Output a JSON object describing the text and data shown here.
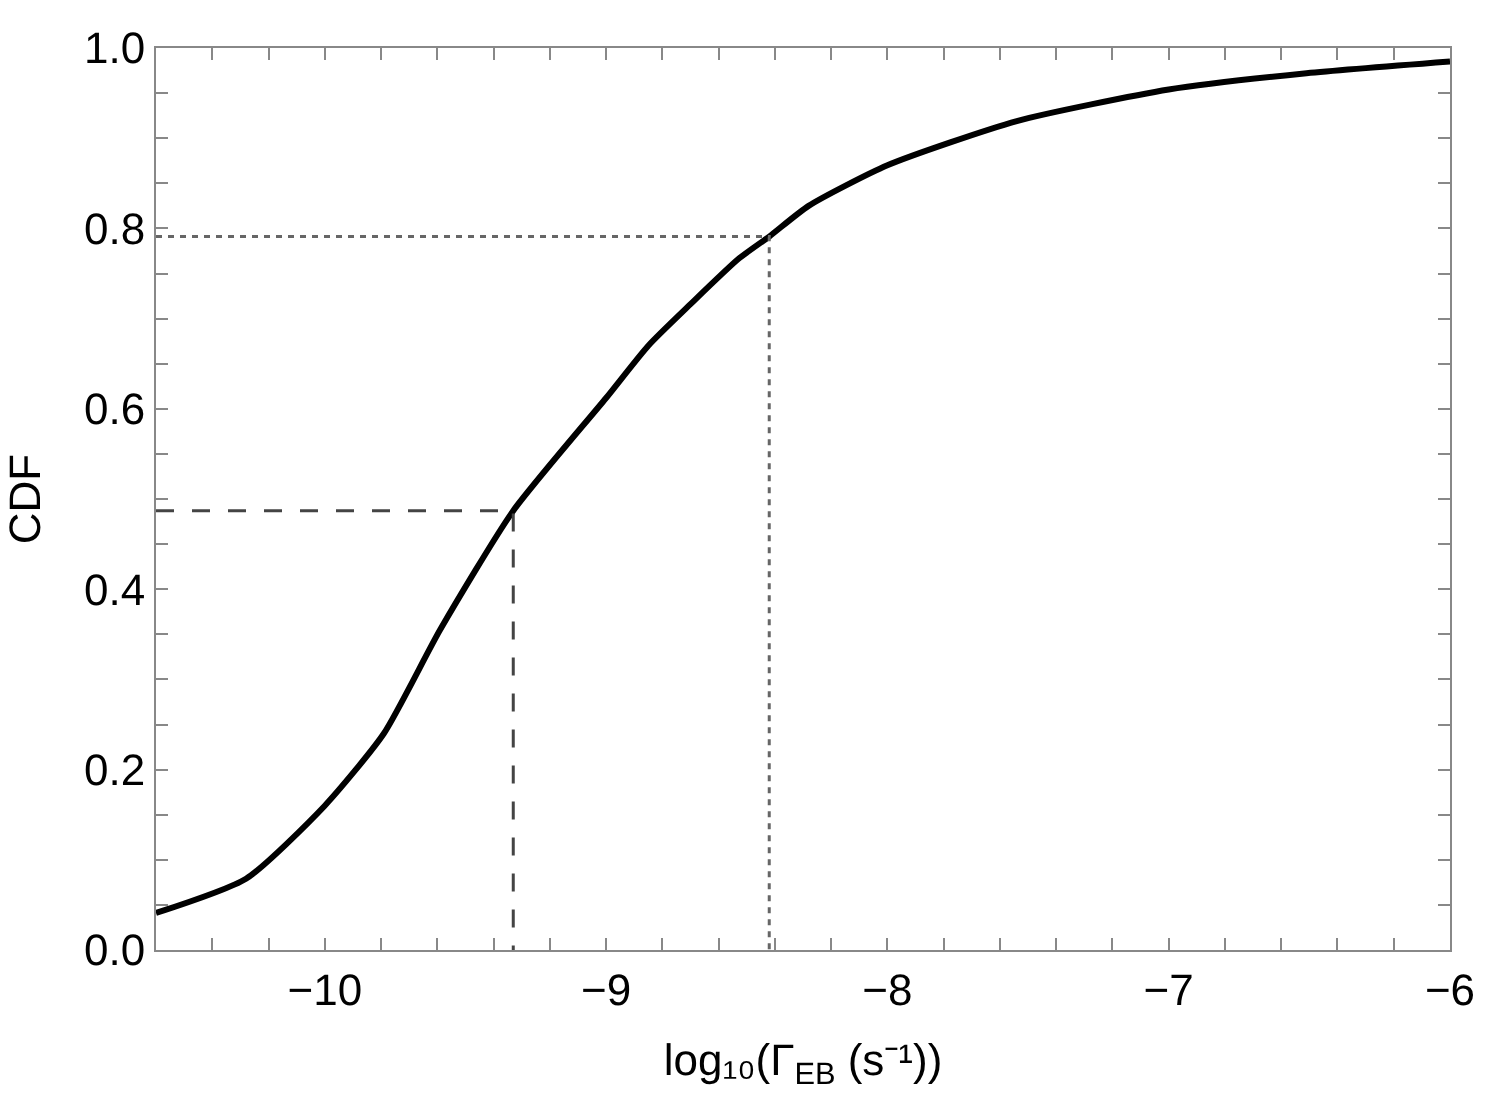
{
  "chart_data": {
    "type": "line",
    "xlabel": "log₁₀(Γ$_{EB}$ (s⁻¹))",
    "ylabel": "CDF",
    "xlim": [
      -10.6,
      -6
    ],
    "ylim": [
      0,
      1
    ],
    "xticks": [
      {
        "value": -10.4,
        "label": null
      },
      {
        "value": -10.2,
        "label": null
      },
      {
        "value": -10,
        "label": "−10"
      },
      {
        "value": -9.8,
        "label": null
      },
      {
        "value": -9.6,
        "label": null
      },
      {
        "value": -9.4,
        "label": null
      },
      {
        "value": -9.2,
        "label": null
      },
      {
        "value": -9,
        "label": "−9"
      },
      {
        "value": -8.8,
        "label": null
      },
      {
        "value": -8.6,
        "label": null
      },
      {
        "value": -8.4,
        "label": null
      },
      {
        "value": -8.2,
        "label": null
      },
      {
        "value": -8,
        "label": "−8"
      },
      {
        "value": -7.8,
        "label": null
      },
      {
        "value": -7.6,
        "label": null
      },
      {
        "value": -7.4,
        "label": null
      },
      {
        "value": -7.2,
        "label": null
      },
      {
        "value": -7,
        "label": "−7"
      },
      {
        "value": -6.8,
        "label": null
      },
      {
        "value": -6.6,
        "label": null
      },
      {
        "value": -6.4,
        "label": null
      },
      {
        "value": -6.2,
        "label": null
      },
      {
        "value": -6,
        "label": "−6"
      }
    ],
    "yticks": [
      {
        "value": 0,
        "label": "0.0"
      },
      {
        "value": 0.05,
        "label": null
      },
      {
        "value": 0.1,
        "label": null
      },
      {
        "value": 0.15,
        "label": null
      },
      {
        "value": 0.2,
        "label": "0.2"
      },
      {
        "value": 0.25,
        "label": null
      },
      {
        "value": 0.3,
        "label": null
      },
      {
        "value": 0.35,
        "label": null
      },
      {
        "value": 0.4,
        "label": "0.4"
      },
      {
        "value": 0.45,
        "label": null
      },
      {
        "value": 0.5,
        "label": null
      },
      {
        "value": 0.55,
        "label": null
      },
      {
        "value": 0.6,
        "label": "0.6"
      },
      {
        "value": 0.65,
        "label": null
      },
      {
        "value": 0.7,
        "label": null
      },
      {
        "value": 0.75,
        "label": null
      },
      {
        "value": 0.8,
        "label": "0.8"
      },
      {
        "value": 0.85,
        "label": null
      },
      {
        "value": 0.9,
        "label": null
      },
      {
        "value": 0.95,
        "label": null
      },
      {
        "value": 1,
        "label": "1.0"
      }
    ],
    "marker": "none",
    "series": [
      {
        "color": "#000000",
        "line_style": "solid",
        "x": [
          -10.6,
          -10.28,
          -10,
          -9.79,
          -9.59,
          -9.33,
          -9,
          -8.85,
          -8.7,
          -8.53,
          -8.42,
          -8.28,
          -8,
          -7.54,
          -7,
          -6.51,
          -6
        ],
        "values": [
          0.041,
          0.079,
          0.16,
          0.24,
          0.355,
          0.487,
          0.612,
          0.67,
          0.716,
          0.766,
          0.791,
          0.825,
          0.87,
          0.919,
          0.954,
          0.972,
          0.985
        ]
      },
      {
        "color": "#444444",
        "line_style": "dashed",
        "x": [
          -10.6,
          -9.33,
          -9.33
        ],
        "values": [
          0.487,
          0.487,
          0
        ]
      },
      {
        "color": "#666666",
        "line_style": "dotted",
        "x": [
          -10.6,
          -8.42,
          -8.42
        ],
        "values": [
          0.791,
          0.791,
          0
        ]
      }
    ]
  }
}
